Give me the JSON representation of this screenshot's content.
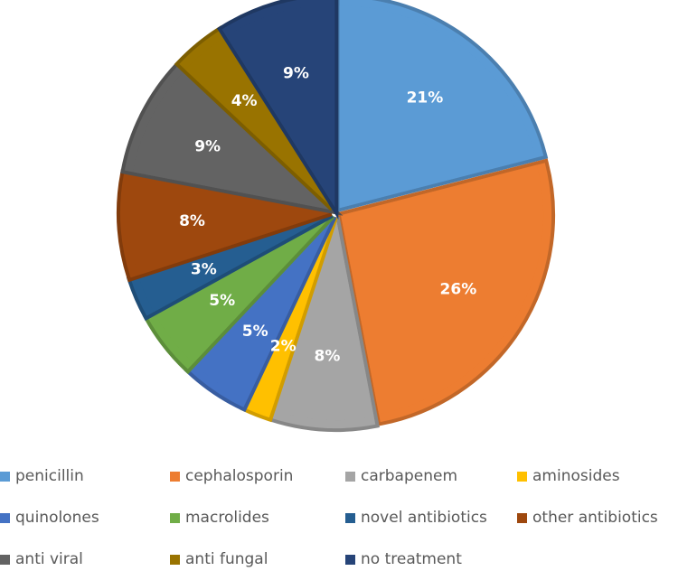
{
  "chart_data": {
    "type": "pie",
    "title": "",
    "start_angle_deg": 0,
    "direction": "clockwise",
    "exploded": true,
    "legend_position": "bottom",
    "slices": [
      {
        "label": "penicillin",
        "value": 21,
        "display": "21%",
        "color": "#5B9BD5"
      },
      {
        "label": "cephalosporin",
        "value": 26,
        "display": "26%",
        "color": "#ED7D31"
      },
      {
        "label": "carbapenem",
        "value": 8,
        "display": "8%",
        "color": "#A5A5A5"
      },
      {
        "label": "aminosides",
        "value": 2,
        "display": "2%",
        "color": "#FFC000"
      },
      {
        "label": "quinolones",
        "value": 5,
        "display": "5%",
        "color": "#4472C4"
      },
      {
        "label": "macrolides",
        "value": 5,
        "display": "5%",
        "color": "#70AD47"
      },
      {
        "label": "novel antibiotics",
        "value": 3,
        "display": "3%",
        "color": "#255E91"
      },
      {
        "label": "other antibiotics",
        "value": 8,
        "display": "8%",
        "color": "#9E480E"
      },
      {
        "label": "anti viral",
        "value": 9,
        "display": "9%",
        "color": "#636363"
      },
      {
        "label": "anti fungal",
        "value": 4,
        "display": "4%",
        "color": "#997300"
      },
      {
        "label": "no treatment",
        "value": 9,
        "display": "9%",
        "color": "#264478"
      }
    ]
  }
}
